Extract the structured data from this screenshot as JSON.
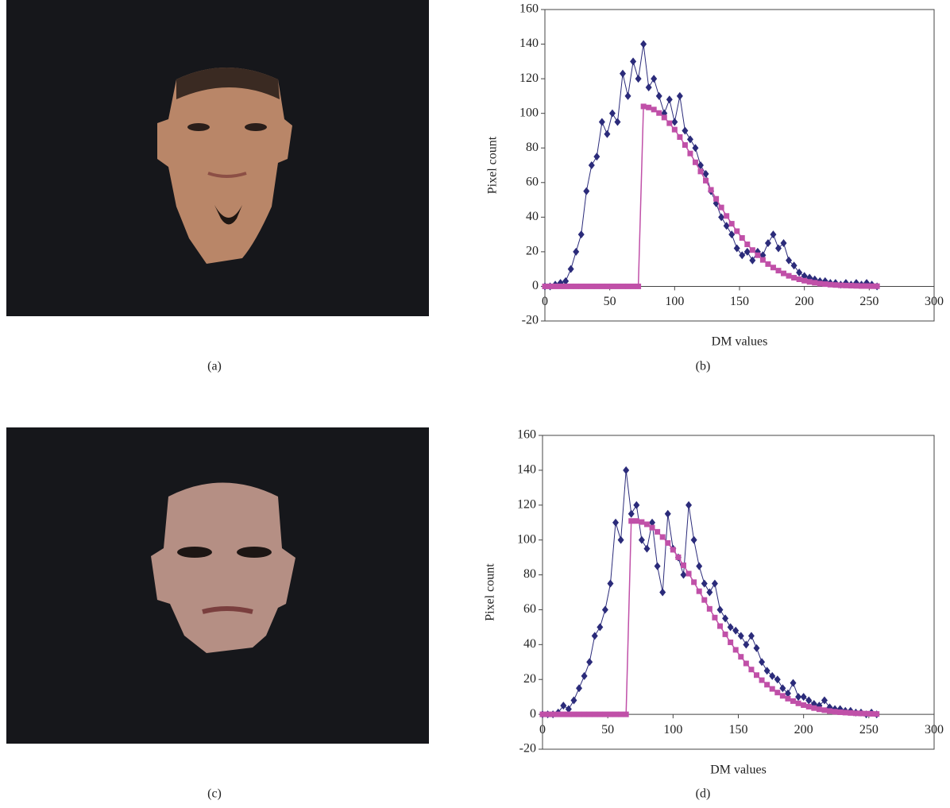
{
  "captions": [
    "(a)",
    "(b)",
    "(c)",
    "(d)"
  ],
  "chart_data": [
    {
      "type": "line",
      "xlabel": "DM values",
      "ylabel": "Pixel count",
      "xlim": [
        0,
        300
      ],
      "ylim": [
        -20,
        160
      ],
      "xticks": [
        0,
        50,
        100,
        150,
        200,
        250,
        300
      ],
      "yticks": [
        -20,
        0,
        20,
        40,
        60,
        80,
        100,
        120,
        140,
        160
      ],
      "x": [
        0,
        4,
        8,
        12,
        16,
        20,
        24,
        28,
        32,
        36,
        40,
        44,
        48,
        52,
        56,
        60,
        64,
        68,
        72,
        76,
        80,
        84,
        88,
        92,
        96,
        100,
        104,
        108,
        112,
        116,
        120,
        124,
        128,
        132,
        136,
        140,
        144,
        148,
        152,
        156,
        160,
        164,
        168,
        172,
        176,
        180,
        184,
        188,
        192,
        196,
        200,
        204,
        208,
        212,
        216,
        220,
        224,
        228,
        232,
        236,
        240,
        244,
        248,
        252,
        256
      ],
      "series": [
        {
          "color": "#2b2b7a",
          "marker": "diamond",
          "values": [
            0,
            0,
            1,
            2,
            3,
            10,
            20,
            30,
            55,
            70,
            75,
            95,
            88,
            100,
            95,
            123,
            110,
            130,
            120,
            140,
            115,
            120,
            110,
            100,
            108,
            95,
            110,
            90,
            85,
            80,
            70,
            65,
            55,
            48,
            40,
            35,
            30,
            22,
            18,
            20,
            15,
            20,
            18,
            25,
            30,
            22,
            25,
            15,
            12,
            8,
            6,
            5,
            4,
            3,
            3,
            2,
            2,
            1,
            2,
            1,
            2,
            1,
            2,
            1,
            0
          ]
        },
        {
          "color": "#c050a8",
          "marker": "square",
          "values": [
            0,
            0,
            0,
            0,
            0,
            0,
            0,
            0,
            0,
            0,
            0,
            0,
            0,
            0,
            0,
            0,
            0,
            0,
            0,
            104,
            103.4,
            102.2,
            100.2,
            97.6,
            94.3,
            90.6,
            86.3,
            81.7,
            76.8,
            71.7,
            66.4,
            61.1,
            55.8,
            50.6,
            45.6,
            40.7,
            36.2,
            31.9,
            28.0,
            24.3,
            21.0,
            18.0,
            15.3,
            12.9,
            10.9,
            9.1,
            7.5,
            6.1,
            5.0,
            4.1,
            3.3,
            2.6,
            2.1,
            1.6,
            1.3,
            1.0,
            0.8,
            0.6,
            0.5,
            0.4,
            0.3,
            0.2,
            0.2,
            0.1,
            0.1
          ]
        }
      ]
    },
    {
      "type": "line",
      "xlabel": "DM values",
      "ylabel": "Pixel count",
      "xlim": [
        0,
        300
      ],
      "ylim": [
        -20,
        160
      ],
      "xticks": [
        0,
        50,
        100,
        150,
        200,
        250,
        300
      ],
      "yticks": [
        -20,
        0,
        20,
        40,
        60,
        80,
        100,
        120,
        140,
        160
      ],
      "x": [
        0,
        4,
        8,
        12,
        16,
        20,
        24,
        28,
        32,
        36,
        40,
        44,
        48,
        52,
        56,
        60,
        64,
        68,
        72,
        76,
        80,
        84,
        88,
        92,
        96,
        100,
        104,
        108,
        112,
        116,
        120,
        124,
        128,
        132,
        136,
        140,
        144,
        148,
        152,
        156,
        160,
        164,
        168,
        172,
        176,
        180,
        184,
        188,
        192,
        196,
        200,
        204,
        208,
        212,
        216,
        220,
        224,
        228,
        232,
        236,
        240,
        244,
        248,
        252,
        256
      ],
      "series": [
        {
          "color": "#2b2b7a",
          "marker": "diamond",
          "values": [
            0,
            0,
            0,
            1,
            5,
            3,
            8,
            15,
            22,
            30,
            45,
            50,
            60,
            75,
            110,
            100,
            140,
            115,
            120,
            100,
            95,
            110,
            85,
            70,
            115,
            95,
            90,
            80,
            120,
            100,
            85,
            75,
            70,
            75,
            60,
            55,
            50,
            48,
            45,
            40,
            45,
            38,
            30,
            25,
            22,
            20,
            15,
            12,
            18,
            10,
            10,
            8,
            6,
            5,
            8,
            4,
            3,
            3,
            2,
            2,
            1,
            1,
            0,
            1,
            0
          ]
        },
        {
          "color": "#c050a8",
          "marker": "square",
          "values": [
            0,
            0,
            0,
            0,
            0,
            0,
            0,
            0,
            0,
            0,
            0,
            0,
            0,
            0,
            0,
            0,
            0,
            110.9,
            110.9,
            110.3,
            109.0,
            107.1,
            104.7,
            101.7,
            98.3,
            94.4,
            90.1,
            85.5,
            80.7,
            75.8,
            70.6,
            65.6,
            60.5,
            55.5,
            50.6,
            45.9,
            41.3,
            37.0,
            33.0,
            29.2,
            25.7,
            22.5,
            19.6,
            17.0,
            14.6,
            12.5,
            10.6,
            9.0,
            7.6,
            6.3,
            5.3,
            4.4,
            3.6,
            2.9,
            2.4,
            1.9,
            1.5,
            1.2,
            1.0,
            0.8,
            0.6,
            0.5,
            0.4,
            0.3,
            0.2
          ]
        }
      ]
    }
  ]
}
